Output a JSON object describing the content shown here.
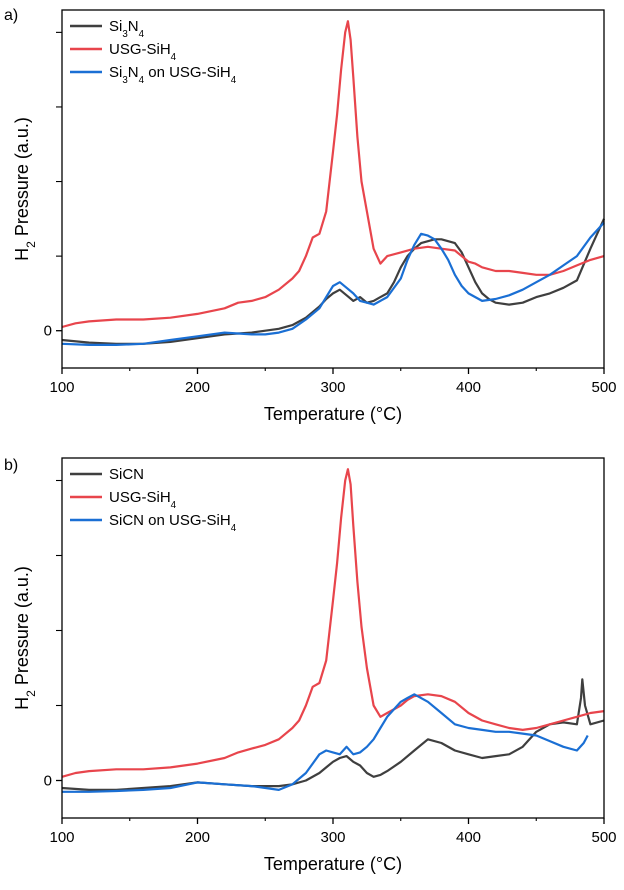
{
  "chart_data": [
    {
      "panel_label": "a)",
      "type": "line",
      "xlabel": "Temperature (°C)",
      "ylabel": "H2 Pressure (a.u.)",
      "ylabel_parts": {
        "pre": "H",
        "sub": "2",
        "post": " Pressure (a.u.)"
      },
      "xlim": [
        100,
        500
      ],
      "ylim": [
        -1.0,
        8.6
      ],
      "x_ticks": [
        100,
        200,
        300,
        400,
        500
      ],
      "y_ticks": [
        0
      ],
      "y_minor_ticks": [
        2,
        4,
        6,
        8
      ],
      "legend_position": "top-left",
      "grid": false,
      "series": [
        {
          "name": "Si3N4",
          "name_parts": [
            [
              "Si",
              ""
            ],
            [
              "3",
              "sub"
            ],
            [
              "N",
              ""
            ],
            [
              "4",
              "sub"
            ]
          ],
          "color": "#3f3f3f",
          "x": [
            100,
            120,
            140,
            160,
            180,
            200,
            220,
            240,
            250,
            260,
            270,
            280,
            290,
            295,
            300,
            305,
            310,
            315,
            320,
            325,
            330,
            335,
            340,
            345,
            350,
            355,
            360,
            365,
            370,
            375,
            380,
            385,
            390,
            395,
            400,
            405,
            410,
            415,
            420,
            430,
            440,
            450,
            460,
            470,
            480,
            490,
            500
          ],
          "y": [
            -0.25,
            -0.32,
            -0.35,
            -0.35,
            -0.3,
            -0.2,
            -0.1,
            -0.05,
            0.0,
            0.05,
            0.15,
            0.35,
            0.65,
            0.85,
            1.0,
            1.1,
            0.95,
            0.8,
            0.9,
            0.75,
            0.8,
            0.9,
            1.0,
            1.3,
            1.7,
            2.0,
            2.2,
            2.35,
            2.4,
            2.45,
            2.45,
            2.4,
            2.35,
            2.1,
            1.7,
            1.3,
            1.0,
            0.85,
            0.75,
            0.7,
            0.75,
            0.9,
            1.0,
            1.15,
            1.35,
            2.2,
            3.0
          ]
        },
        {
          "name": "USG-SiH4",
          "name_parts": [
            [
              "USG-SiH",
              ""
            ],
            [
              "4",
              "sub"
            ]
          ],
          "color": "#e8454c",
          "x": [
            100,
            110,
            120,
            140,
            160,
            180,
            200,
            220,
            230,
            240,
            250,
            260,
            270,
            275,
            280,
            285,
            290,
            295,
            300,
            303,
            306,
            309,
            311,
            313,
            315,
            318,
            321,
            325,
            330,
            335,
            340,
            350,
            360,
            370,
            380,
            390,
            400,
            405,
            410,
            420,
            430,
            440,
            450,
            460,
            470,
            480,
            490,
            500
          ],
          "y": [
            0.1,
            0.2,
            0.25,
            0.3,
            0.3,
            0.35,
            0.45,
            0.6,
            0.75,
            0.8,
            0.9,
            1.1,
            1.4,
            1.6,
            2.0,
            2.5,
            2.6,
            3.2,
            4.8,
            5.8,
            7.0,
            8.0,
            8.3,
            7.8,
            6.8,
            5.2,
            4.0,
            3.2,
            2.2,
            1.8,
            2.0,
            2.1,
            2.2,
            2.25,
            2.2,
            2.15,
            1.85,
            1.8,
            1.7,
            1.6,
            1.6,
            1.55,
            1.5,
            1.5,
            1.6,
            1.75,
            1.9,
            2.0
          ]
        },
        {
          "name": "Si3N4 on USG-SiH4",
          "name_parts": [
            [
              "Si",
              ""
            ],
            [
              "3",
              "sub"
            ],
            [
              "N",
              ""
            ],
            [
              "4",
              "sub"
            ],
            [
              " on USG-SiH",
              ""
            ],
            [
              "4",
              "sub"
            ]
          ],
          "color": "#1a6fd4",
          "x": [
            100,
            120,
            140,
            160,
            180,
            200,
            220,
            240,
            250,
            260,
            270,
            280,
            290,
            295,
            300,
            305,
            310,
            315,
            320,
            325,
            330,
            340,
            350,
            355,
            360,
            365,
            370,
            375,
            380,
            385,
            390,
            395,
            400,
            410,
            420,
            430,
            440,
            450,
            460,
            470,
            480,
            490,
            500
          ],
          "y": [
            -0.35,
            -0.38,
            -0.38,
            -0.35,
            -0.25,
            -0.15,
            -0.05,
            -0.1,
            -0.1,
            -0.05,
            0.05,
            0.3,
            0.6,
            0.9,
            1.2,
            1.3,
            1.15,
            1.0,
            0.8,
            0.75,
            0.7,
            0.9,
            1.4,
            1.9,
            2.3,
            2.6,
            2.55,
            2.45,
            2.2,
            1.9,
            1.5,
            1.2,
            1.0,
            0.8,
            0.85,
            0.95,
            1.1,
            1.3,
            1.5,
            1.75,
            2.0,
            2.5,
            2.9
          ]
        }
      ]
    },
    {
      "panel_label": "b)",
      "type": "line",
      "xlabel": "Temperature (°C)",
      "ylabel": "H2 Pressure (a.u.)",
      "ylabel_parts": {
        "pre": "H",
        "sub": "2",
        "post": " Pressure (a.u.)"
      },
      "xlim": [
        100,
        500
      ],
      "ylim": [
        -1.0,
        8.6
      ],
      "x_ticks": [
        100,
        200,
        300,
        400,
        500
      ],
      "y_ticks": [
        0
      ],
      "y_minor_ticks": [
        2,
        4,
        6,
        8
      ],
      "legend_position": "top-left",
      "grid": false,
      "series": [
        {
          "name": "SiCN",
          "name_parts": [
            [
              "SiCN",
              ""
            ]
          ],
          "color": "#3f3f3f",
          "x": [
            100,
            120,
            140,
            160,
            180,
            200,
            220,
            240,
            260,
            270,
            280,
            290,
            295,
            300,
            305,
            310,
            315,
            320,
            325,
            330,
            335,
            340,
            350,
            360,
            370,
            380,
            390,
            400,
            410,
            420,
            430,
            440,
            450,
            460,
            470,
            480,
            483,
            484,
            486,
            490,
            500
          ],
          "y": [
            -0.2,
            -0.25,
            -0.25,
            -0.2,
            -0.15,
            -0.05,
            -0.1,
            -0.15,
            -0.15,
            -0.1,
            0.0,
            0.2,
            0.35,
            0.5,
            0.6,
            0.65,
            0.5,
            0.4,
            0.2,
            0.1,
            0.15,
            0.25,
            0.5,
            0.8,
            1.1,
            1.0,
            0.8,
            0.7,
            0.6,
            0.65,
            0.7,
            0.9,
            1.3,
            1.5,
            1.55,
            1.5,
            2.2,
            2.7,
            2.0,
            1.5,
            1.6
          ]
        },
        {
          "name": "USG-SiH4",
          "name_parts": [
            [
              "USG-SiH",
              ""
            ],
            [
              "4",
              "sub"
            ]
          ],
          "color": "#e8454c",
          "x": [
            100,
            110,
            120,
            140,
            160,
            180,
            200,
            220,
            230,
            240,
            250,
            260,
            270,
            275,
            280,
            285,
            290,
            295,
            300,
            303,
            306,
            309,
            311,
            313,
            315,
            318,
            321,
            325,
            330,
            335,
            340,
            350,
            355,
            360,
            370,
            380,
            390,
            400,
            410,
            420,
            430,
            440,
            450,
            460,
            470,
            480,
            490,
            500
          ],
          "y": [
            0.1,
            0.2,
            0.25,
            0.3,
            0.3,
            0.35,
            0.45,
            0.6,
            0.75,
            0.85,
            0.95,
            1.1,
            1.4,
            1.6,
            2.0,
            2.5,
            2.6,
            3.2,
            4.8,
            5.8,
            7.0,
            8.0,
            8.3,
            7.9,
            6.8,
            5.3,
            4.1,
            3.0,
            2.0,
            1.7,
            1.8,
            2.0,
            2.15,
            2.25,
            2.3,
            2.25,
            2.1,
            1.8,
            1.6,
            1.5,
            1.4,
            1.35,
            1.4,
            1.5,
            1.6,
            1.7,
            1.8,
            1.85
          ]
        },
        {
          "name": "SiCN on USG-SiH4",
          "name_parts": [
            [
              "SiCN on USG-SiH",
              ""
            ],
            [
              "4",
              "sub"
            ]
          ],
          "color": "#1a6fd4",
          "x": [
            100,
            120,
            140,
            160,
            180,
            200,
            220,
            240,
            260,
            270,
            280,
            285,
            290,
            295,
            300,
            305,
            310,
            315,
            320,
            325,
            330,
            335,
            340,
            345,
            350,
            355,
            360,
            370,
            380,
            390,
            400,
            410,
            420,
            430,
            440,
            450,
            460,
            470,
            480,
            485,
            488
          ],
          "y": [
            -0.3,
            -0.3,
            -0.28,
            -0.25,
            -0.2,
            -0.05,
            -0.1,
            -0.15,
            -0.25,
            -0.1,
            0.2,
            0.45,
            0.7,
            0.8,
            0.75,
            0.7,
            0.9,
            0.7,
            0.75,
            0.9,
            1.1,
            1.4,
            1.7,
            1.9,
            2.1,
            2.2,
            2.3,
            2.1,
            1.8,
            1.5,
            1.4,
            1.35,
            1.3,
            1.3,
            1.25,
            1.2,
            1.05,
            0.9,
            0.8,
            1.0,
            1.2
          ]
        }
      ]
    }
  ]
}
